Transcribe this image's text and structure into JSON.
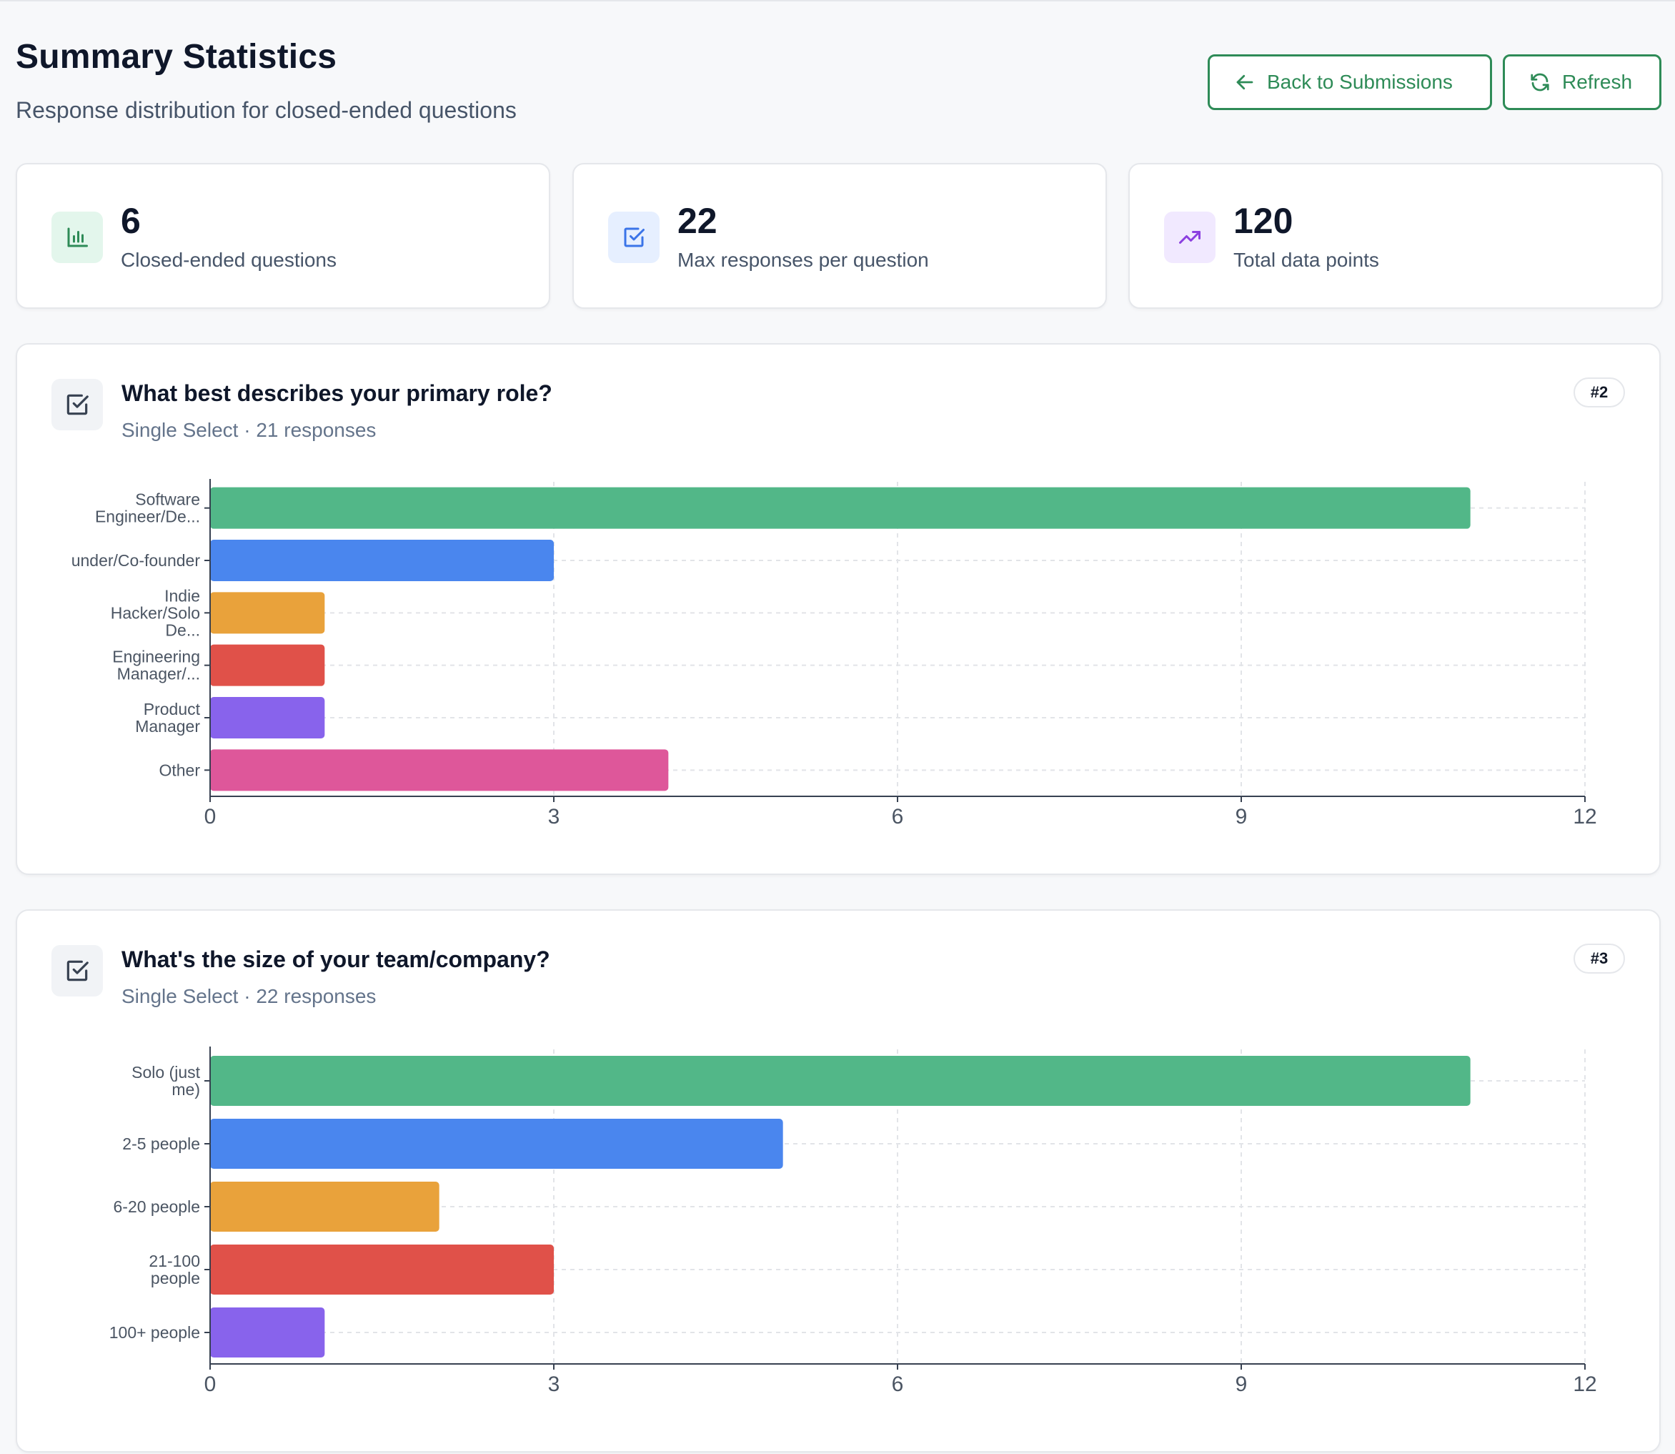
{
  "header": {
    "title": "Summary Statistics",
    "subtitle": "Response distribution for closed-ended questions",
    "back_label": "Back to Submissions",
    "refresh_label": "Refresh"
  },
  "stats": [
    {
      "value": "6",
      "label": "Closed-ended questions",
      "icon": "bar-chart-icon",
      "icon_bg": "#e3f6ec",
      "icon_color": "#2e8b57"
    },
    {
      "value": "22",
      "label": "Max responses per question",
      "icon": "check-square-icon",
      "icon_bg": "#e6efff",
      "icon_color": "#3b74e8"
    },
    {
      "value": "120",
      "label": "Total data points",
      "icon": "trending-up-icon",
      "icon_bg": "#f1e9ff",
      "icon_color": "#8b3fe0"
    }
  ],
  "questions": [
    {
      "title": "What best describes your primary role?",
      "meta": "Single Select · 21 responses",
      "badge": "#2",
      "icon": "check-square-icon"
    },
    {
      "title": "What's the size of your team/company?",
      "meta": "Single Select · 22 responses",
      "badge": "#3",
      "icon": "check-square-icon"
    }
  ],
  "chart_data": [
    {
      "type": "bar",
      "orientation": "horizontal",
      "categories": [
        "Software Engineer/De...",
        "under/Co-founder",
        "Indie Hacker/Solo De...",
        "Engineering Manager/...",
        "Product Manager",
        "Other"
      ],
      "values": [
        11,
        3,
        1,
        1,
        1,
        4
      ],
      "colors": [
        "#52b788",
        "#4a86ee",
        "#e9a23b",
        "#e05149",
        "#8863ec",
        "#de579a"
      ],
      "xlim": [
        0,
        12
      ],
      "xticks": [
        0,
        3,
        6,
        9,
        12
      ],
      "grid": true
    },
    {
      "type": "bar",
      "orientation": "horizontal",
      "categories": [
        "Solo (just me)",
        "2-5 people",
        "6-20 people",
        "21-100 people",
        "100+ people"
      ],
      "values": [
        11,
        5,
        2,
        3,
        1
      ],
      "colors": [
        "#52b788",
        "#4a86ee",
        "#e9a23b",
        "#e05149",
        "#8863ec"
      ],
      "xlim": [
        0,
        12
      ],
      "xticks": [
        0,
        3,
        6,
        9,
        12
      ],
      "grid": true
    }
  ]
}
